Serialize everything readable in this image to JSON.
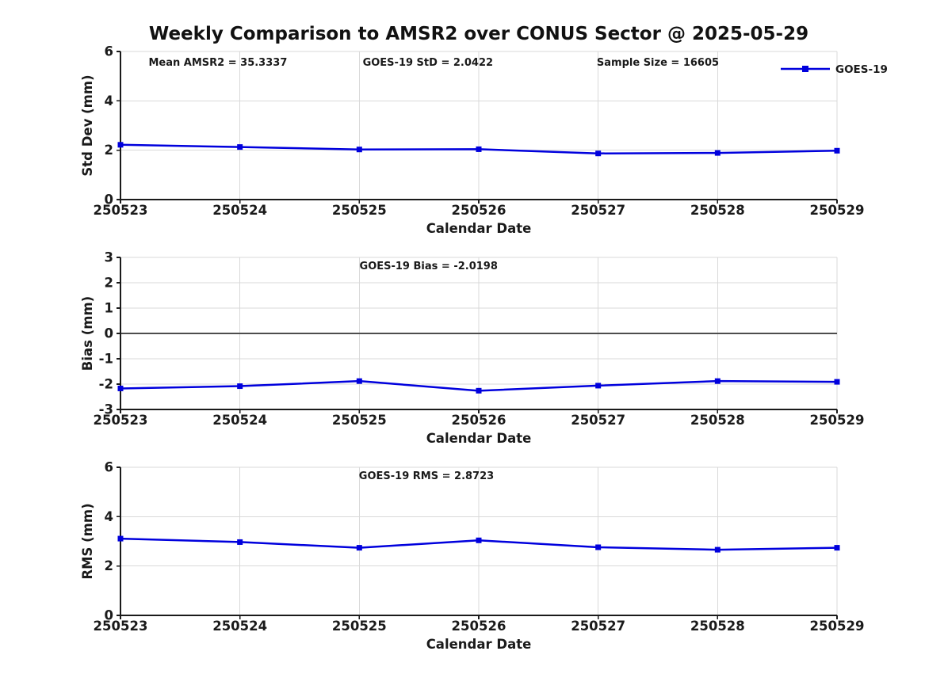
{
  "title": "Weekly Comparison to AMSR2 over CONUS Sector @ 2025-05-29",
  "legend": {
    "label": "GOES-19"
  },
  "colors": {
    "series": "#0000dd",
    "grid": "#d9d9d9",
    "zero_line": "#4d4d4d",
    "text": "#1a1a1a"
  },
  "chart_data": [
    {
      "type": "line",
      "id": "stddev",
      "categories": [
        "250523",
        "250524",
        "250525",
        "250526",
        "250527",
        "250528",
        "250529"
      ],
      "series": [
        {
          "name": "GOES-19",
          "values": [
            2.22,
            2.13,
            2.03,
            2.04,
            1.87,
            1.89,
            1.98
          ]
        }
      ],
      "xlabel": "Calendar Date",
      "ylabel": "Std Dev (mm)",
      "ylim": [
        0,
        6
      ],
      "yticks": [
        0,
        2,
        4,
        6
      ],
      "grid": true,
      "zero_line": false,
      "show_legend": true,
      "legend_position": "northeast",
      "annotations": [
        {
          "text": "Mean AMSR2 = 35.3337",
          "xfrac": 0.136
        },
        {
          "text": "GOES-19 StD = 2.0422",
          "xfrac": 0.429
        },
        {
          "text": "Sample Size = 16605",
          "xfrac": 0.75
        }
      ]
    },
    {
      "type": "line",
      "id": "bias",
      "categories": [
        "250523",
        "250524",
        "250525",
        "250526",
        "250527",
        "250528",
        "250529"
      ],
      "series": [
        {
          "name": "GOES-19",
          "values": [
            -2.17,
            -2.08,
            -1.88,
            -2.26,
            -2.06,
            -1.88,
            -1.91
          ]
        }
      ],
      "xlabel": "Calendar Date",
      "ylabel": "Bias (mm)",
      "ylim": [
        -3,
        3
      ],
      "yticks": [
        -3,
        -2,
        -1,
        0,
        1,
        2,
        3
      ],
      "grid": true,
      "zero_line": true,
      "show_legend": false,
      "annotations": [
        {
          "text": "GOES-19 Bias  = -2.0198",
          "xfrac": 0.43
        }
      ]
    },
    {
      "type": "line",
      "id": "rms",
      "categories": [
        "250523",
        "250524",
        "250525",
        "250526",
        "250527",
        "250528",
        "250529"
      ],
      "series": [
        {
          "name": "GOES-19",
          "values": [
            3.11,
            2.97,
            2.74,
            3.04,
            2.76,
            2.66,
            2.74
          ]
        }
      ],
      "xlabel": "Calendar Date",
      "ylabel": "RMS (mm)",
      "ylim": [
        0,
        6
      ],
      "yticks": [
        0,
        2,
        4,
        6
      ],
      "grid": true,
      "zero_line": false,
      "show_legend": false,
      "annotations": [
        {
          "text": "GOES-19 RMS = 2.8723",
          "xfrac": 0.427
        }
      ]
    }
  ]
}
